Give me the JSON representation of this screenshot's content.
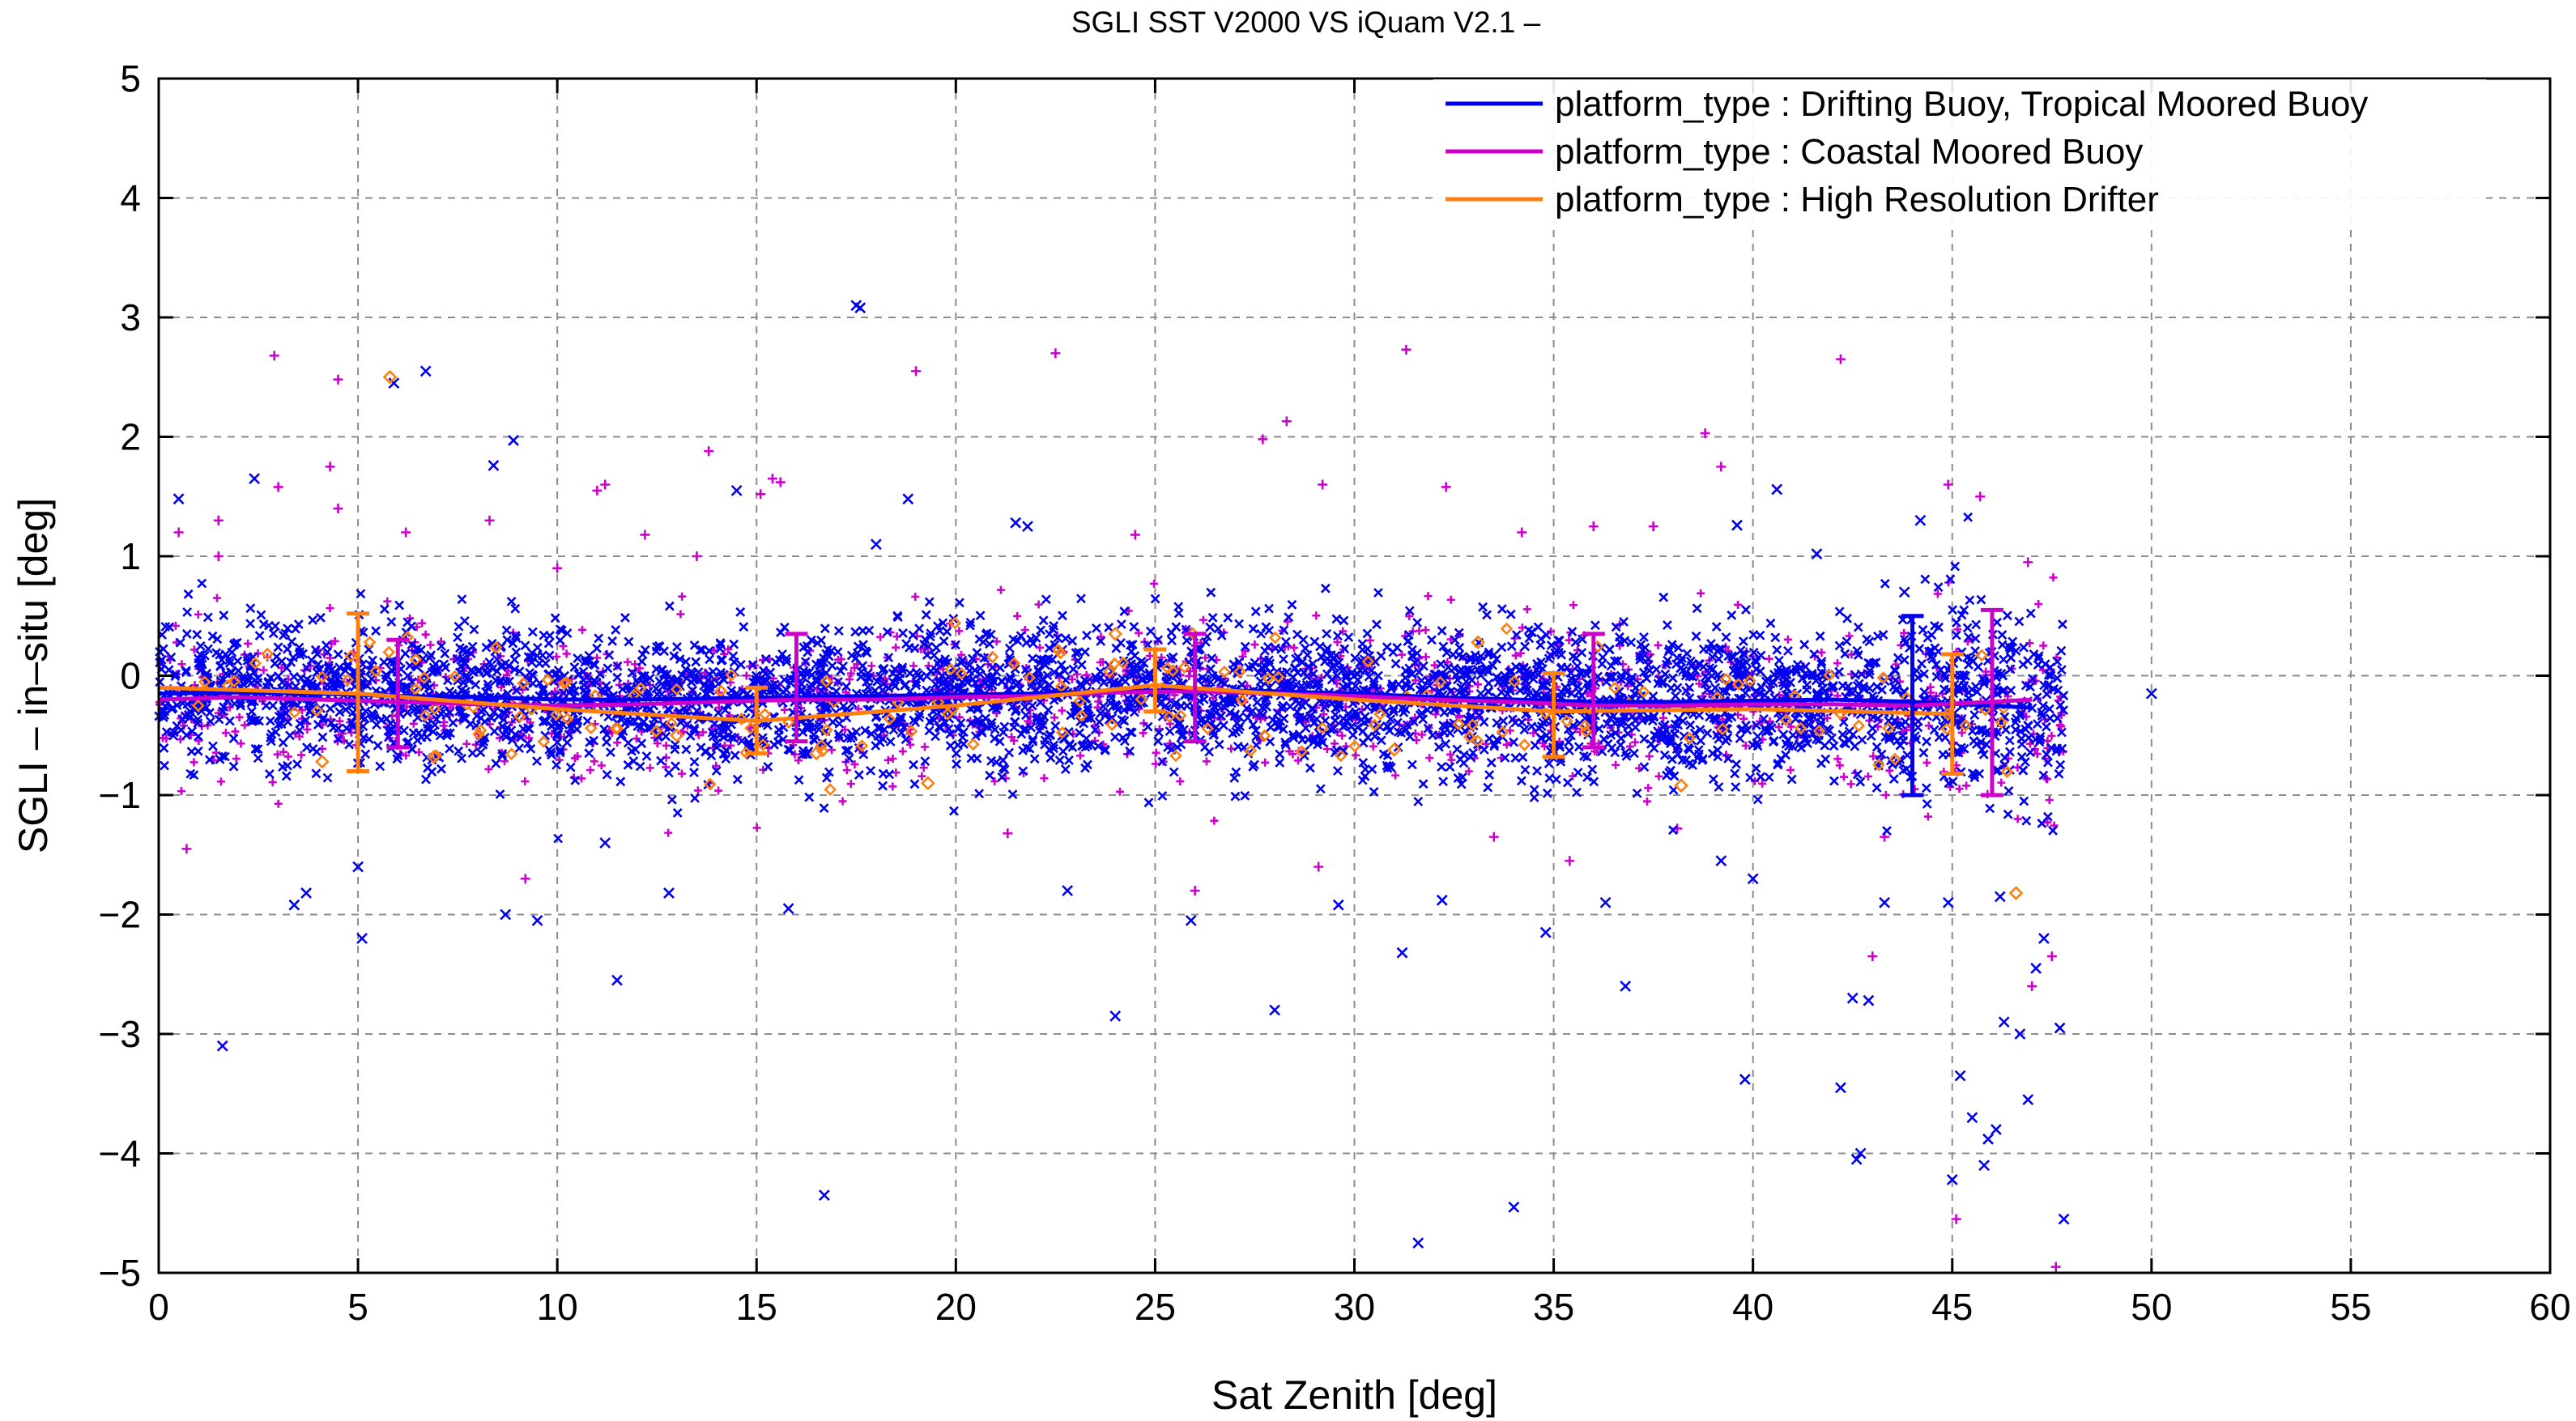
{
  "chart_data": {
    "type": "scatter",
    "title": "SGLI SST V2000 VS iQuam V2.1  –",
    "xlabel": "Sat Zenith [deg]",
    "ylabel": "SGLI – in–situ [deg]",
    "xlim": [
      0,
      60
    ],
    "ylim": [
      -5,
      5
    ],
    "xticks": [
      0,
      5,
      10,
      15,
      20,
      25,
      30,
      35,
      40,
      45,
      50,
      55,
      60
    ],
    "yticks": [
      -5,
      -4,
      -3,
      -2,
      -1,
      0,
      1,
      2,
      3,
      4,
      5
    ],
    "grid": true,
    "legend_position": "top-right",
    "series": [
      {
        "name": "platform_type : Drifting Buoy, Tropical Moored Buoy",
        "color": "#0000ee",
        "marker": "x",
        "mean_line": {
          "x": [
            0,
            2,
            4,
            6,
            8,
            10,
            12,
            14,
            16,
            18,
            20,
            22,
            24,
            26,
            28,
            30,
            32,
            34,
            36,
            38,
            40,
            42,
            44,
            46,
            47
          ],
          "y": [
            -0.15,
            -0.14,
            -0.15,
            -0.17,
            -0.18,
            -0.2,
            -0.2,
            -0.19,
            -0.18,
            -0.17,
            -0.16,
            -0.15,
            -0.13,
            -0.12,
            -0.13,
            -0.15,
            -0.18,
            -0.2,
            -0.22,
            -0.22,
            -0.21,
            -0.2,
            -0.22,
            -0.25,
            -0.27
          ]
        },
        "error_bars": [
          {
            "x": 44,
            "y": -0.25,
            "low": -1.0,
            "high": 0.5
          }
        ],
        "outliers": [
          {
            "x": 0.5,
            "y": 1.48
          },
          {
            "x": 1.6,
            "y": -3.1
          },
          {
            "x": 2.4,
            "y": 1.65
          },
          {
            "x": 3.4,
            "y": -1.92
          },
          {
            "x": 3.7,
            "y": -1.82
          },
          {
            "x": 5.0,
            "y": -1.6
          },
          {
            "x": 5.1,
            "y": -2.2
          },
          {
            "x": 5.9,
            "y": 2.45
          },
          {
            "x": 6.7,
            "y": 2.55
          },
          {
            "x": 8.4,
            "y": 1.76
          },
          {
            "x": 8.9,
            "y": 1.97
          },
          {
            "x": 8.7,
            "y": -2.0
          },
          {
            "x": 9.5,
            "y": -2.05
          },
          {
            "x": 11.2,
            "y": -1.4
          },
          {
            "x": 11.5,
            "y": -2.55
          },
          {
            "x": 12.8,
            "y": -1.82
          },
          {
            "x": 14.5,
            "y": 1.55
          },
          {
            "x": 15.8,
            "y": -1.95
          },
          {
            "x": 16.7,
            "y": -4.35
          },
          {
            "x": 17.5,
            "y": 3.1
          },
          {
            "x": 17.6,
            "y": 3.08
          },
          {
            "x": 18.0,
            "y": 1.1
          },
          {
            "x": 18.8,
            "y": 1.48
          },
          {
            "x": 21.5,
            "y": 1.28
          },
          {
            "x": 21.8,
            "y": 1.25
          },
          {
            "x": 22.8,
            "y": -1.8
          },
          {
            "x": 24.0,
            "y": -2.85
          },
          {
            "x": 25.9,
            "y": -2.05
          },
          {
            "x": 28.0,
            "y": -2.8
          },
          {
            "x": 29.6,
            "y": -1.92
          },
          {
            "x": 31.2,
            "y": -2.32
          },
          {
            "x": 31.6,
            "y": -4.75
          },
          {
            "x": 32.2,
            "y": -1.88
          },
          {
            "x": 34.0,
            "y": -4.45
          },
          {
            "x": 34.8,
            "y": -2.15
          },
          {
            "x": 36.3,
            "y": -1.9
          },
          {
            "x": 36.8,
            "y": -2.6
          },
          {
            "x": 39.2,
            "y": -1.55
          },
          {
            "x": 39.6,
            "y": 1.26
          },
          {
            "x": 39.8,
            "y": -3.38
          },
          {
            "x": 40.0,
            "y": -1.7
          },
          {
            "x": 40.6,
            "y": 1.56
          },
          {
            "x": 41.6,
            "y": 1.02
          },
          {
            "x": 42.2,
            "y": -3.45
          },
          {
            "x": 42.5,
            "y": -2.7
          },
          {
            "x": 42.7,
            "y": -4.0
          },
          {
            "x": 42.9,
            "y": -2.72
          },
          {
            "x": 43.3,
            "y": -1.9
          },
          {
            "x": 43.8,
            "y": 0.7
          },
          {
            "x": 44.2,
            "y": 1.3
          },
          {
            "x": 45.2,
            "y": -3.35
          },
          {
            "x": 45.5,
            "y": -3.7
          },
          {
            "x": 45.8,
            "y": -4.1
          },
          {
            "x": 46.1,
            "y": -3.8
          },
          {
            "x": 46.3,
            "y": -2.9
          },
          {
            "x": 46.7,
            "y": -3.0
          },
          {
            "x": 46.9,
            "y": -3.55
          },
          {
            "x": 47.3,
            "y": -2.2
          },
          {
            "x": 47.7,
            "y": -2.95
          },
          {
            "x": 47.8,
            "y": -4.55
          },
          {
            "x": 50.0,
            "y": -0.15
          },
          {
            "x": 45.0,
            "y": -4.22
          },
          {
            "x": 45.9,
            "y": -3.88
          },
          {
            "x": 44.9,
            "y": -1.9
          },
          {
            "x": 42.6,
            "y": -4.05
          },
          {
            "x": 46.2,
            "y": -1.85
          },
          {
            "x": 47.1,
            "y": -2.45
          }
        ]
      },
      {
        "name": "platform_type : Coastal Moored Buoy",
        "color": "#cc00cc",
        "marker": "+",
        "mean_line": {
          "x": [
            0,
            2,
            4,
            6,
            8,
            10,
            12,
            14,
            16,
            18,
            20,
            22,
            24,
            26,
            28,
            30,
            32,
            34,
            36,
            38,
            40,
            42,
            44,
            46,
            47
          ],
          "y": [
            -0.2,
            -0.18,
            -0.2,
            -0.22,
            -0.24,
            -0.25,
            -0.24,
            -0.22,
            -0.2,
            -0.2,
            -0.18,
            -0.17,
            -0.14,
            -0.13,
            -0.15,
            -0.17,
            -0.2,
            -0.22,
            -0.25,
            -0.25,
            -0.24,
            -0.24,
            -0.25,
            -0.22,
            -0.2
          ]
        },
        "error_bars": [
          {
            "x": 6,
            "y": -0.15,
            "low": -0.6,
            "high": 0.3
          },
          {
            "x": 16,
            "y": -0.1,
            "low": -0.55,
            "high": 0.35
          },
          {
            "x": 26,
            "y": -0.1,
            "low": -0.55,
            "high": 0.35
          },
          {
            "x": 36,
            "y": -0.12,
            "low": -0.6,
            "high": 0.35
          },
          {
            "x": 46,
            "y": -0.2,
            "low": -1.0,
            "high": 0.55
          }
        ],
        "outliers": [
          {
            "x": 0.5,
            "y": 1.2
          },
          {
            "x": 0.7,
            "y": -1.45
          },
          {
            "x": 1.5,
            "y": 1.3
          },
          {
            "x": 1.5,
            "y": 1.0
          },
          {
            "x": 2.9,
            "y": 2.68
          },
          {
            "x": 3.0,
            "y": 1.58
          },
          {
            "x": 4.3,
            "y": 1.75
          },
          {
            "x": 4.5,
            "y": 2.48
          },
          {
            "x": 4.5,
            "y": 1.4
          },
          {
            "x": 6.2,
            "y": 1.2
          },
          {
            "x": 8.3,
            "y": 1.3
          },
          {
            "x": 10.0,
            "y": 0.9
          },
          {
            "x": 11.0,
            "y": 1.55
          },
          {
            "x": 11.2,
            "y": 1.6
          },
          {
            "x": 12.2,
            "y": 1.18
          },
          {
            "x": 13.5,
            "y": 1.0
          },
          {
            "x": 13.8,
            "y": 1.88
          },
          {
            "x": 15.1,
            "y": 1.52
          },
          {
            "x": 15.4,
            "y": 1.65
          },
          {
            "x": 15.6,
            "y": 1.62
          },
          {
            "x": 19.0,
            "y": 2.55
          },
          {
            "x": 22.5,
            "y": 2.7
          },
          {
            "x": 24.5,
            "y": 1.18
          },
          {
            "x": 27.7,
            "y": 1.98
          },
          {
            "x": 28.3,
            "y": 2.13
          },
          {
            "x": 29.2,
            "y": 1.6
          },
          {
            "x": 31.3,
            "y": 2.73
          },
          {
            "x": 32.3,
            "y": 1.58
          },
          {
            "x": 34.2,
            "y": 1.2
          },
          {
            "x": 36.0,
            "y": 1.25
          },
          {
            "x": 37.5,
            "y": 1.25
          },
          {
            "x": 38.8,
            "y": 2.03
          },
          {
            "x": 39.2,
            "y": 1.75
          },
          {
            "x": 42.2,
            "y": 2.65
          },
          {
            "x": 43.3,
            "y": -1.35
          },
          {
            "x": 43.0,
            "y": -2.35
          },
          {
            "x": 44.9,
            "y": 1.6
          },
          {
            "x": 45.7,
            "y": 1.5
          },
          {
            "x": 45.1,
            "y": -4.55
          },
          {
            "x": 47.5,
            "y": -2.35
          },
          {
            "x": 47.0,
            "y": -2.6
          },
          {
            "x": 46.9,
            "y": 0.95
          },
          {
            "x": 47.6,
            "y": -4.95
          },
          {
            "x": 9.2,
            "y": -1.7
          },
          {
            "x": 21.3,
            "y": -1.32
          },
          {
            "x": 26.0,
            "y": -1.8
          },
          {
            "x": 29.1,
            "y": -1.6
          },
          {
            "x": 35.4,
            "y": -1.55
          },
          {
            "x": 38.1,
            "y": -1.28
          },
          {
            "x": 33.5,
            "y": -1.35
          }
        ]
      },
      {
        "name": "platform_type : High Resolution Drifter",
        "color": "#ff7f0e",
        "marker": "diamond",
        "mean_line": {
          "x": [
            0,
            5,
            10,
            15,
            20,
            25,
            30,
            35,
            40,
            45
          ],
          "y": [
            -0.1,
            -0.15,
            -0.28,
            -0.38,
            -0.25,
            -0.08,
            -0.2,
            -0.3,
            -0.28,
            -0.32
          ]
        },
        "error_bars": [
          {
            "x": 5,
            "y": -0.15,
            "low": -0.8,
            "high": 0.52
          },
          {
            "x": 15,
            "y": -0.38,
            "low": -0.65,
            "high": -0.1
          },
          {
            "x": 25,
            "y": -0.08,
            "low": -0.3,
            "high": 0.22
          },
          {
            "x": 35,
            "y": -0.3,
            "low": -0.68,
            "high": 0.02
          },
          {
            "x": 45,
            "y": -0.32,
            "low": -0.82,
            "high": 0.18
          }
        ],
        "outliers": [
          {
            "x": 5.8,
            "y": 2.5
          },
          {
            "x": 4.1,
            "y": -0.72
          },
          {
            "x": 6.9,
            "y": -0.68
          },
          {
            "x": 19.3,
            "y": -0.9
          },
          {
            "x": 38.2,
            "y": -0.92
          },
          {
            "x": 46.6,
            "y": -1.82
          },
          {
            "x": 13.0,
            "y": -0.5
          },
          {
            "x": 16.5,
            "y": -0.65
          },
          {
            "x": 24.0,
            "y": 0.35
          },
          {
            "x": 31.0,
            "y": -0.62
          },
          {
            "x": 33.1,
            "y": 0.28
          }
        ]
      }
    ]
  }
}
